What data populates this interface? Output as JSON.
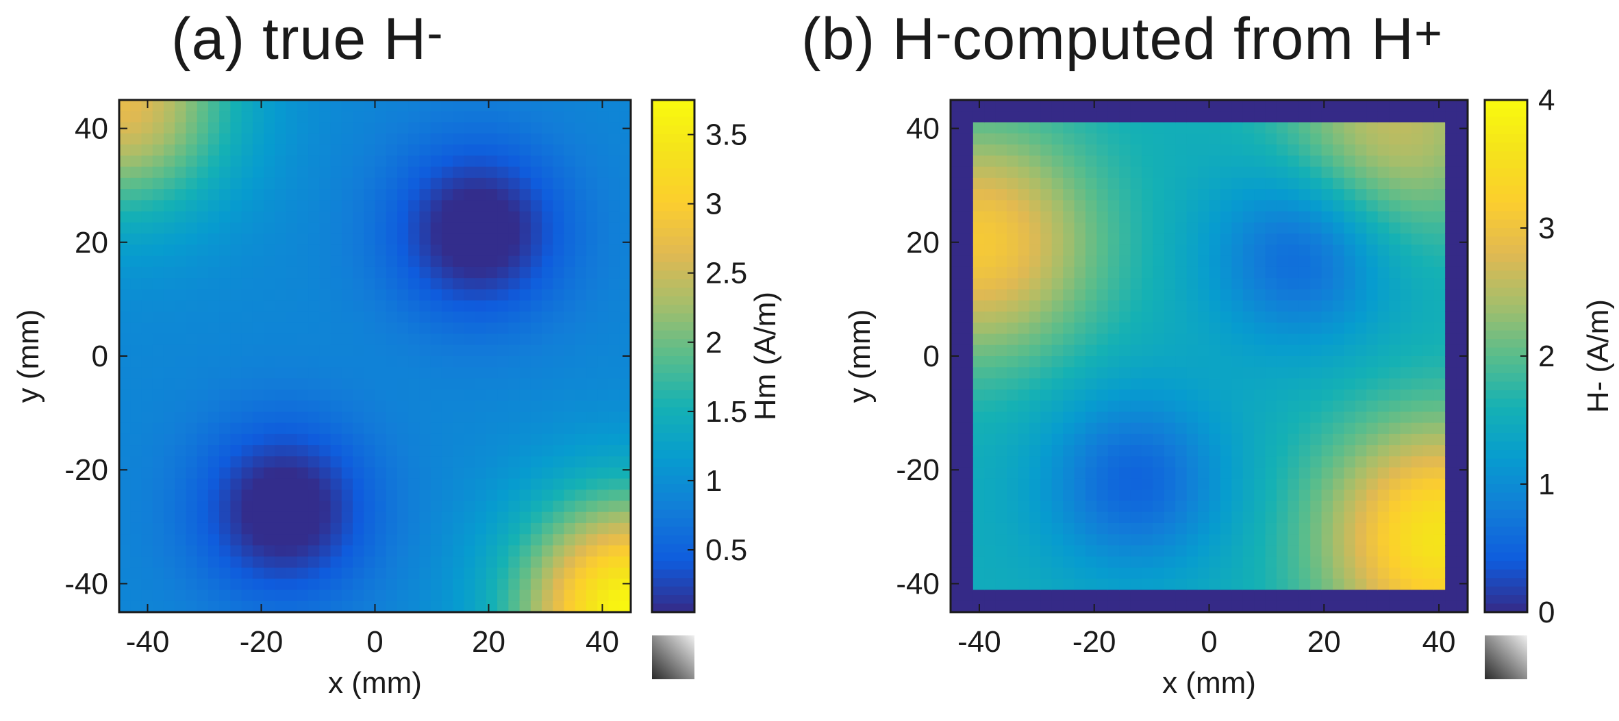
{
  "chart_data": [
    {
      "type": "heatmap",
      "panel_label": "(a) true H",
      "title_superscript": "-",
      "xlabel": "x (mm)",
      "ylabel": "y (mm)",
      "xlim": [
        -45,
        45
      ],
      "ylim": [
        -45,
        45
      ],
      "xticks": [
        -40,
        -20,
        0,
        20,
        40
      ],
      "yticks": [
        -40,
        -20,
        0,
        20,
        40
      ],
      "colorbar": {
        "label": "Hm (A/m)",
        "range": [
          0.05,
          3.75
        ],
        "ticks": [
          0.5,
          1,
          1.5,
          2,
          2.5,
          3,
          3.5
        ],
        "colormap": "parula"
      },
      "field": {
        "sources": [
          {
            "x": 18,
            "y": 22,
            "strength": 1.0
          },
          {
            "x": -16,
            "y": -27,
            "strength": 1.0
          }
        ],
        "hotspots": [
          {
            "x": 45,
            "y": -45,
            "value": 3.7
          },
          {
            "x": -45,
            "y": 45,
            "value": 2.7
          }
        ],
        "base": 0.9,
        "zero_border": false
      }
    },
    {
      "type": "heatmap",
      "panel_label": "(b) H",
      "title_superscript": "-",
      "panel_label_continued": "computed from H",
      "title_superscript_2": "+",
      "xlabel": "x (mm)",
      "ylabel": "y (mm)",
      "xlim": [
        -45,
        45
      ],
      "ylim": [
        -45,
        45
      ],
      "xticks": [
        -40,
        -20,
        0,
        20,
        40
      ],
      "yticks": [
        -40,
        -20,
        0,
        20,
        40
      ],
      "colorbar": {
        "label": "H- (A/m)",
        "range": [
          0,
          4
        ],
        "ticks": [
          0,
          1,
          2,
          3,
          4
        ],
        "colormap": "parula"
      },
      "field": {
        "sources": [
          {
            "x": 16,
            "y": 18,
            "strength": 1.0
          },
          {
            "x": -13,
            "y": -22,
            "strength": 1.0
          }
        ],
        "hotspots": [
          {
            "x": 40,
            "y": -32,
            "value": 3.6
          },
          {
            "x": -40,
            "y": 20,
            "value": 3.1
          },
          {
            "x": 32,
            "y": 40,
            "value": 2.6
          }
        ],
        "base": 1.5,
        "zero_border": true,
        "valid_extent": 40.5
      }
    }
  ],
  "colors": {
    "parula_start": "#352a87",
    "parula_end": "#f9fb0e",
    "gray_swatch_light": "#f0f0f0",
    "gray_swatch_dark": "#2a2a2a"
  }
}
